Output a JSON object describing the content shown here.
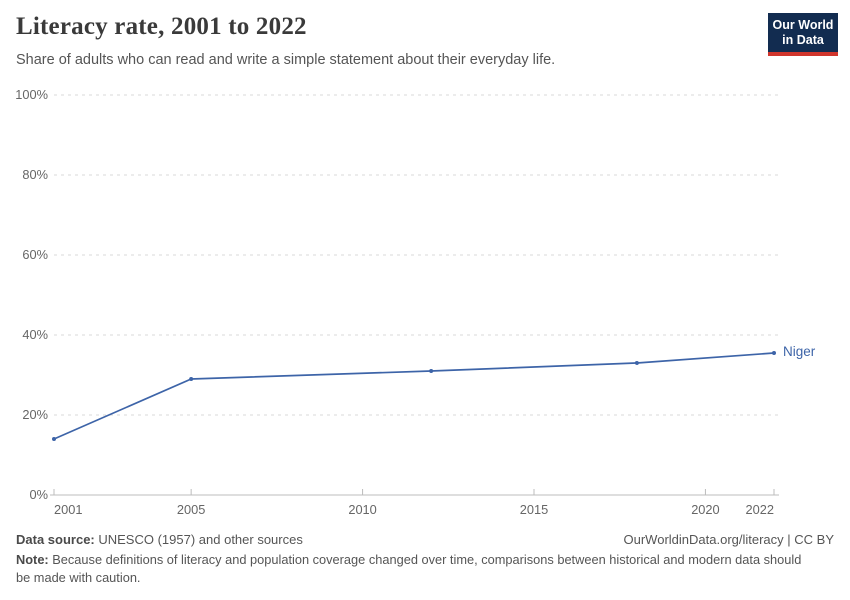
{
  "header": {
    "title": "Literacy rate, 2001 to 2022",
    "subtitle": "Share of adults who can read and write a simple statement about their everyday life."
  },
  "logo": {
    "line1": "Our World",
    "line2": "in Data",
    "bg_color": "#122c50",
    "bar_color": "#d0352c"
  },
  "chart_data": {
    "type": "line",
    "title": "Literacy rate, 2001 to 2022",
    "xlabel": "",
    "ylabel": "",
    "x_range": [
      2001,
      2022
    ],
    "ylim": [
      0,
      100
    ],
    "grid": "horizontal dashed gridlines",
    "legend_position": "end-of-line label",
    "y_ticks": [
      {
        "value": 0,
        "label": "0%"
      },
      {
        "value": 20,
        "label": "20%"
      },
      {
        "value": 40,
        "label": "40%"
      },
      {
        "value": 60,
        "label": "60%"
      },
      {
        "value": 80,
        "label": "80%"
      },
      {
        "value": 100,
        "label": "100%"
      }
    ],
    "x_ticks": [
      {
        "value": 2001,
        "label": "2001"
      },
      {
        "value": 2005,
        "label": "2005"
      },
      {
        "value": 2010,
        "label": "2010"
      },
      {
        "value": 2015,
        "label": "2015"
      },
      {
        "value": 2020,
        "label": "2020"
      },
      {
        "value": 2022,
        "label": "2022"
      }
    ],
    "series": [
      {
        "name": "Niger",
        "color": "#3d64a8",
        "points": [
          [
            2001,
            14
          ],
          [
            2005,
            29
          ],
          [
            2012,
            31
          ],
          [
            2018,
            33
          ],
          [
            2022,
            35.5
          ]
        ]
      }
    ]
  },
  "footer": {
    "source_label": "Data source:",
    "source_text": " UNESCO (1957) and other sources",
    "link": "OurWorldinData.org/literacy | CC BY",
    "note_label": "Note:",
    "note_text": " Because definitions of literacy and population coverage changed over time, comparisons between historical and modern data should be made with caution."
  }
}
